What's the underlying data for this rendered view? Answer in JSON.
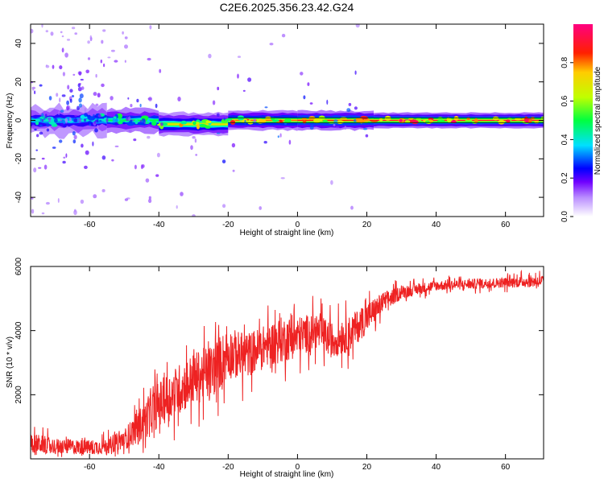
{
  "figure_title": "C2E6.2025.356.23.42.G24",
  "chart_data": [
    {
      "type": "heatmap",
      "name": "spectrogram",
      "xlabel": "Height of straight line (km)",
      "ylabel": "Frequency (Hz)",
      "xlim": [
        -77,
        71
      ],
      "ylim": [
        -50,
        50
      ],
      "xticks": [
        -60,
        -40,
        -20,
        0,
        20,
        40,
        60
      ],
      "xtick_labels": [
        "-60",
        "-40",
        "-20",
        "0",
        "20",
        "40",
        "60"
      ],
      "yticks": [
        -40,
        -20,
        0,
        20,
        40
      ],
      "ytick_labels": [
        "-40",
        "-20",
        "0",
        "20",
        "40"
      ],
      "colorbar": {
        "label": "Normalized spectral amplitude",
        "range": [
          0,
          1
        ],
        "ticks": [
          0.0,
          0.2,
          0.4,
          0.6,
          0.8
        ],
        "tick_labels": [
          "0.0",
          "0.2",
          "0.4",
          "0.6",
          "0.8"
        ]
      },
      "segments": [
        {
          "x_start": -77,
          "x_end": -55,
          "center_freq": 0,
          "half_width": 5,
          "peak": 0.45,
          "scatter": "high"
        },
        {
          "x_start": -55,
          "x_end": -40,
          "center_freq": 0,
          "half_width": 4,
          "peak": 0.55,
          "scatter": "medium"
        },
        {
          "x_start": -40,
          "x_end": -20,
          "center_freq": -2,
          "half_width": 3,
          "peak": 0.8,
          "scatter": "low"
        },
        {
          "x_start": -20,
          "x_end": 0,
          "center_freq": 0,
          "half_width": 2.5,
          "peak": 0.9,
          "scatter": "low"
        },
        {
          "x_start": 0,
          "x_end": 22,
          "center_freq": 0,
          "half_width": 2.5,
          "peak": 0.95,
          "scatter": "low"
        },
        {
          "x_start": 22,
          "x_end": 71,
          "center_freq": 0,
          "half_width": 2,
          "peak": 1.0,
          "scatter": "none"
        }
      ]
    },
    {
      "type": "line",
      "name": "snr",
      "color": "#ee2222",
      "xlabel": "Height of straight line (km)",
      "ylabel": "SNR (10 * v/v)",
      "xlim": [
        -77,
        71
      ],
      "ylim": [
        0,
        6000
      ],
      "xticks": [
        -60,
        -40,
        -20,
        0,
        20,
        40,
        60
      ],
      "xtick_labels": [
        "-60",
        "-40",
        "-20",
        "0",
        "20",
        "40",
        "60"
      ],
      "yticks": [
        2000,
        4000,
        6000
      ],
      "ytick_labels": [
        "2000",
        "4000",
        "6000"
      ],
      "x": [
        -77,
        -70,
        -60,
        -55,
        -50,
        -45,
        -40,
        -35,
        -30,
        -25,
        -20,
        -15,
        -10,
        -5,
        0,
        5,
        10,
        15,
        20,
        25,
        30,
        40,
        50,
        60,
        71
      ],
      "y": [
        500,
        400,
        350,
        400,
        600,
        1100,
        1700,
        2100,
        2500,
        2700,
        3300,
        3200,
        3500,
        3700,
        3800,
        4000,
        3700,
        3900,
        4400,
        4900,
        5200,
        5400,
        5450,
        5500,
        5550
      ],
      "noise_amplitude": [
        400,
        300,
        300,
        300,
        400,
        700,
        900,
        1000,
        1000,
        1100,
        1000,
        900,
        800,
        900,
        800,
        700,
        700,
        700,
        600,
        400,
        250,
        200,
        200,
        200,
        250
      ]
    }
  ]
}
